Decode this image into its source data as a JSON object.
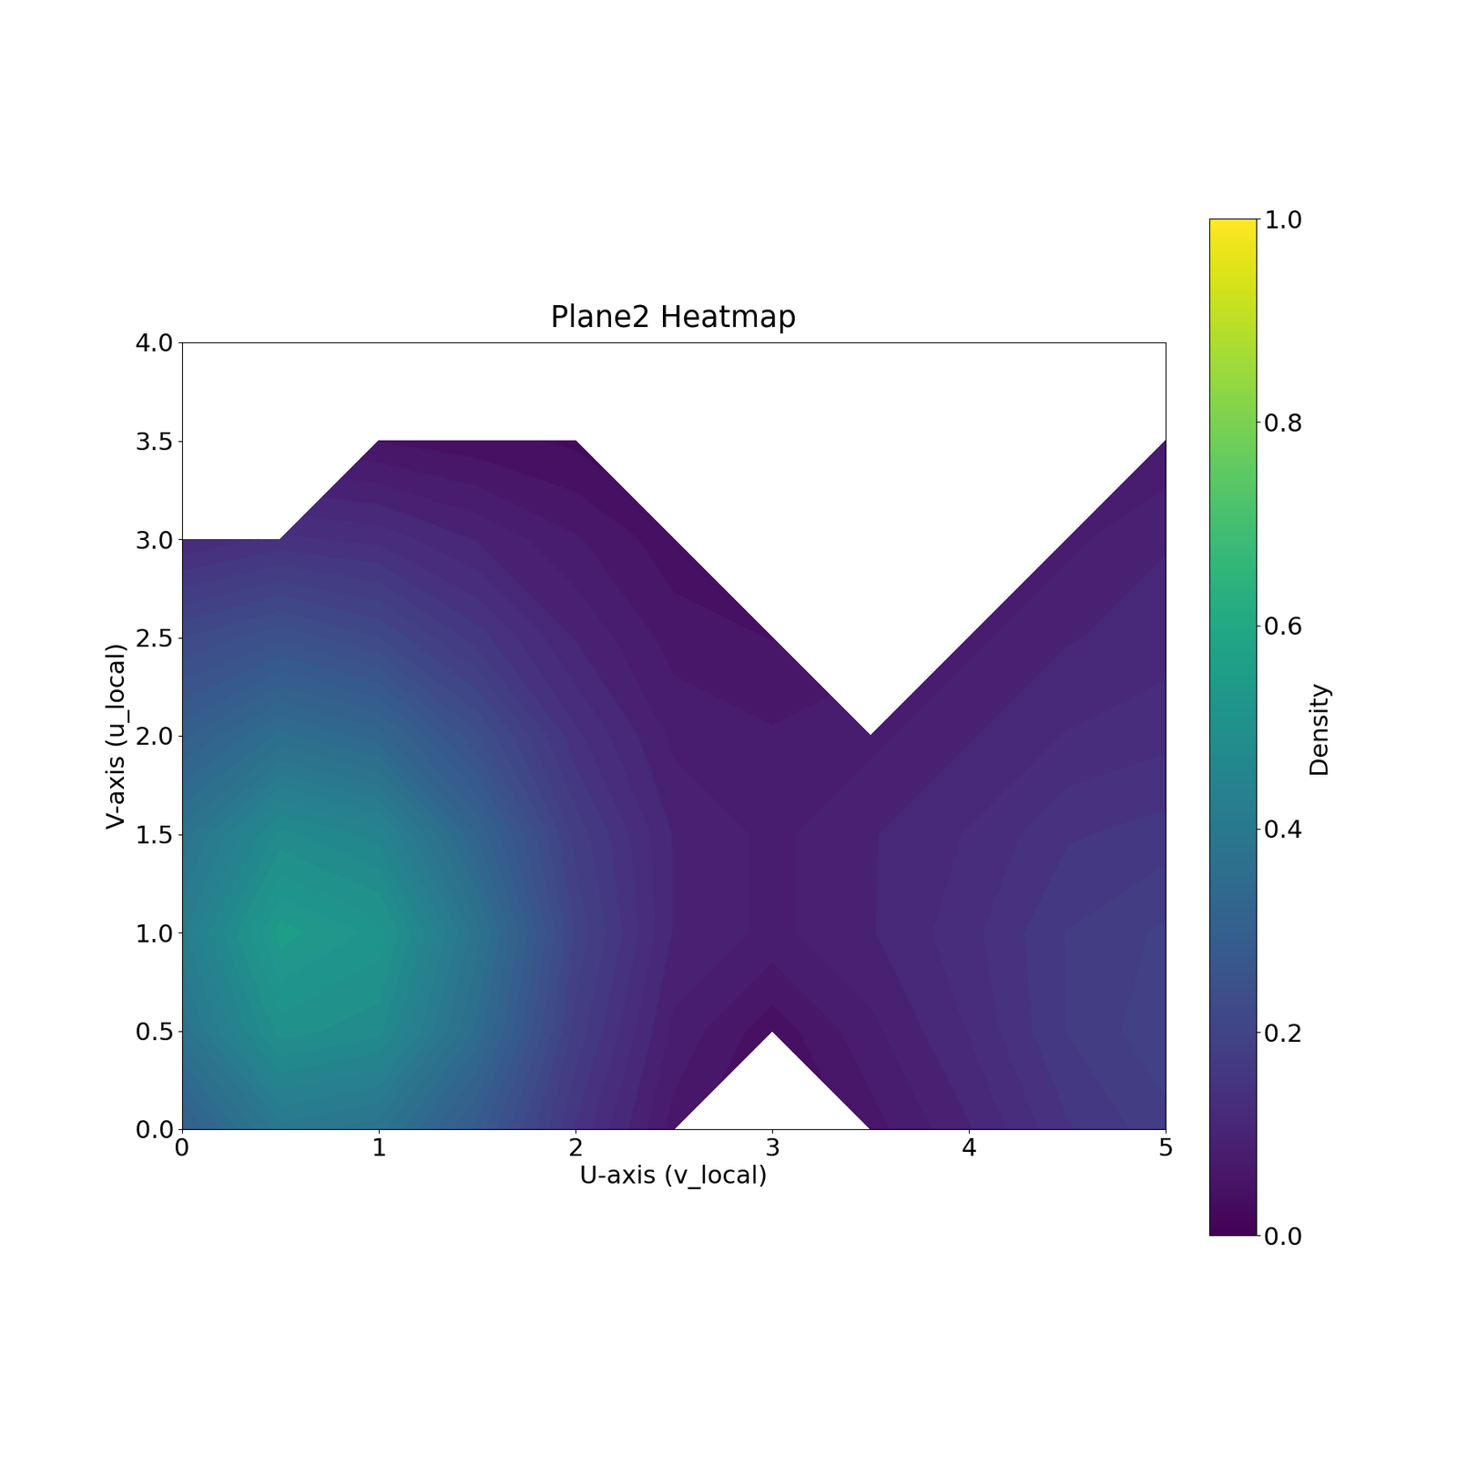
{
  "chart_data": {
    "type": "heatmap",
    "title": "Plane2 Heatmap",
    "x_label": "U-axis (v_local)",
    "y_label": "V-axis (u_local)",
    "x": [
      0,
      0.5,
      1,
      1.5,
      2,
      2.5,
      3,
      3.5,
      4,
      4.5,
      5
    ],
    "y": [
      0,
      0.5,
      1,
      1.5,
      2,
      2.5,
      3,
      3.5,
      4
    ],
    "cells": [
      [
        0.3,
        0.4,
        0.38,
        0.28,
        0.15,
        0.06,
        null,
        0.06,
        0.1,
        0.15,
        0.18
      ],
      [
        0.38,
        0.5,
        0.48,
        0.35,
        0.18,
        0.08,
        0.04,
        0.08,
        0.12,
        0.17,
        0.2
      ],
      [
        0.42,
        0.55,
        0.52,
        0.38,
        0.2,
        0.1,
        0.08,
        0.1,
        0.13,
        0.17,
        0.19
      ],
      [
        0.38,
        0.48,
        0.45,
        0.32,
        0.18,
        0.1,
        0.08,
        0.1,
        0.12,
        0.15,
        0.16
      ],
      [
        0.3,
        0.36,
        0.33,
        0.24,
        0.14,
        0.08,
        0.07,
        0.08,
        0.1,
        0.12,
        0.13
      ],
      [
        0.22,
        0.25,
        0.22,
        0.16,
        0.1,
        0.06,
        0.05,
        null,
        0.08,
        0.1,
        0.11
      ],
      [
        0.12,
        0.14,
        0.13,
        0.1,
        0.07,
        0.04,
        null,
        null,
        null,
        0.08,
        0.1
      ],
      [
        null,
        null,
        0.05,
        0.04,
        0.03,
        null,
        null,
        null,
        null,
        null,
        0.07
      ],
      [
        null,
        null,
        null,
        null,
        null,
        null,
        null,
        null,
        null,
        null,
        null
      ]
    ],
    "xlim": [
      0,
      5
    ],
    "xticks": [
      0,
      1,
      2,
      3,
      4,
      5
    ],
    "ylim": [
      0,
      4
    ],
    "yticks": [
      {
        "value": 0,
        "label": "0.0"
      },
      {
        "value": 0.5,
        "label": "0.5"
      },
      {
        "value": 1,
        "label": "1.0"
      },
      {
        "value": 1.5,
        "label": "1.5"
      },
      {
        "value": 2,
        "label": "2.0"
      },
      {
        "value": 2.5,
        "label": "2.5"
      },
      {
        "value": 3,
        "label": "3.0"
      },
      {
        "value": 3.5,
        "label": "3.5"
      },
      {
        "value": 4,
        "label": "4.0"
      }
    ],
    "colorbar_label": "Density",
    "colorbar_range": [
      0,
      1
    ],
    "colorbar_ticks": [
      {
        "value": 0,
        "label": "0.0"
      },
      {
        "value": 0.2,
        "label": "0.2"
      },
      {
        "value": 0.4,
        "label": "0.4"
      },
      {
        "value": 0.6,
        "label": "0.6"
      },
      {
        "value": 0.8,
        "label": "0.8"
      },
      {
        "value": 1,
        "label": "1.0"
      }
    ]
  }
}
